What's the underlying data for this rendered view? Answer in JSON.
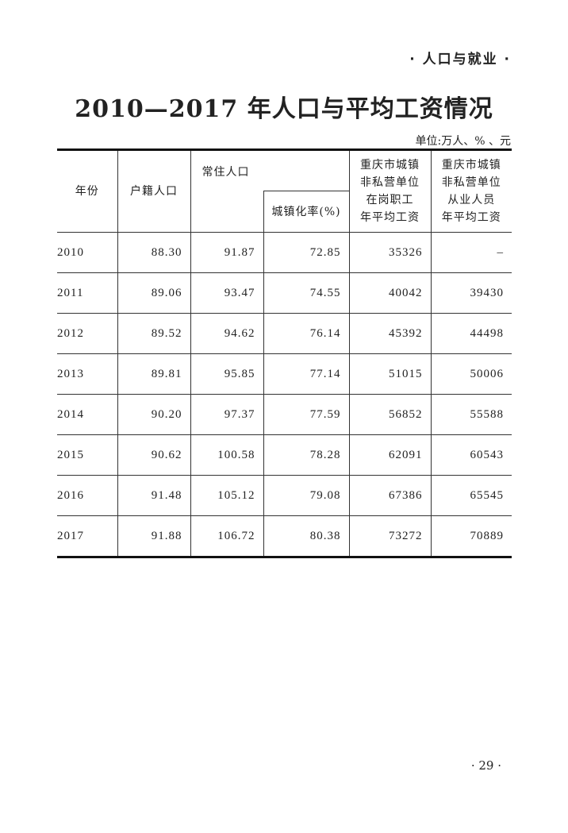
{
  "section_header": "· 人口与就业 ·",
  "title": "2010—2017 年人口与平均工资情况",
  "unit": "单位:万人、% 、元",
  "table": {
    "headers": {
      "year": "年份",
      "registered": "户籍人口",
      "resident": "常住人口",
      "urbanization": "城镇化率(%)",
      "wage_employed_lines": [
        "重庆市城镇",
        "非私营单位",
        "在岗职工",
        "年平均工资"
      ],
      "wage_all_lines": [
        "重庆市城镇",
        "非私营单位",
        "从业人员",
        "年平均工资"
      ]
    },
    "rows": [
      [
        "2010",
        "88.30",
        "91.87",
        "72.85",
        "35326",
        "–"
      ],
      [
        "2011",
        "89.06",
        "93.47",
        "74.55",
        "40042",
        "39430"
      ],
      [
        "2012",
        "89.52",
        "94.62",
        "76.14",
        "45392",
        "44498"
      ],
      [
        "2013",
        "89.81",
        "95.85",
        "77.14",
        "51015",
        "50006"
      ],
      [
        "2014",
        "90.20",
        "97.37",
        "77.59",
        "56852",
        "55588"
      ],
      [
        "2015",
        "90.62",
        "100.58",
        "78.28",
        "62091",
        "60543"
      ],
      [
        "2016",
        "91.48",
        "105.12",
        "79.08",
        "67386",
        "65545"
      ],
      [
        "2017",
        "91.88",
        "106.72",
        "80.38",
        "73272",
        "70889"
      ]
    ]
  },
  "page_number": "· 29 ·"
}
